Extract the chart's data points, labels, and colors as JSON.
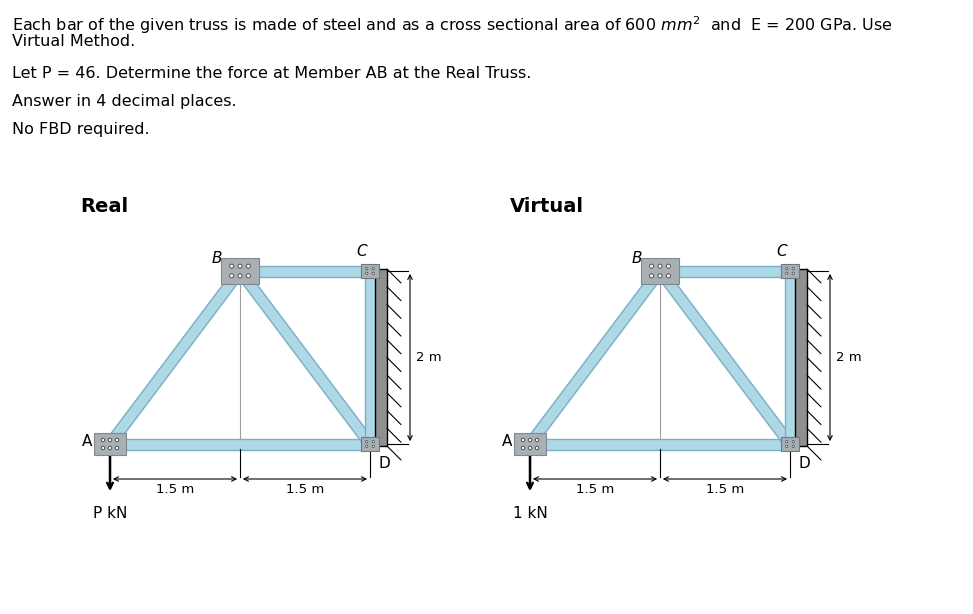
{
  "bg_color": "#ffffff",
  "text_color": "#000000",
  "truss_color": "#ADD8E6",
  "truss_edge_color": "#7AAEC8",
  "joint_color_big": "#B0B8BC",
  "joint_color_small": "#A8B0B5",
  "wall_color": "#A0A0A0",
  "line1a": "Each bar of the given truss is made of steel and as a cross sectional area of 600 ",
  "line1b": "mm",
  "line1c": " and  E = 200 GPa. Use",
  "line2": "Virtual Method.",
  "line3": "Let P = 46. Determine the force at Member AB at the Real Truss.",
  "line4": "Answer in 4 decimal places.",
  "line5": "No FBD required.",
  "label_real": "Real",
  "label_virtual": "Virtual",
  "dim_15": "1.5 m",
  "dim_2": "2 m",
  "load_real": "P kN",
  "load_virtual": "1 kN",
  "fontsize_body": 11.5,
  "fontsize_label": 11,
  "fontsize_dim": 9.5
}
